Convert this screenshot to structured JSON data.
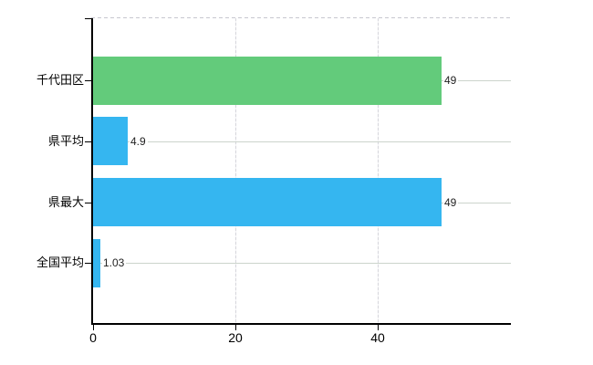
{
  "chart_data": {
    "type": "bar",
    "orientation": "horizontal",
    "title": "",
    "categories": [
      "千代田区",
      "県平均",
      "県最大",
      "全国平均"
    ],
    "values": [
      49,
      4.9,
      49,
      1.03
    ],
    "value_labels": [
      "49",
      "4.9",
      "49",
      "1.03"
    ],
    "bar_colors": [
      "#63cb7b",
      "#35b6f0",
      "#35b6f0",
      "#35b6f0"
    ],
    "x_tick_values": [
      0,
      20,
      40
    ],
    "x_tick_labels": [
      "0",
      "20",
      "40"
    ],
    "xlim": [
      0,
      58.7
    ],
    "grid": true,
    "legend_position": "none"
  },
  "colors": {
    "green_bar": "#63cb7b",
    "blue_bar": "#35b6f0",
    "axis": "#000000",
    "horizontal_gridline": "#ccd4cc",
    "vertical_gridline": "#d6d6dc",
    "top_border_dashed": "#c7c7cf",
    "value_text": "#1f1f1f",
    "background": "#ffffff"
  }
}
